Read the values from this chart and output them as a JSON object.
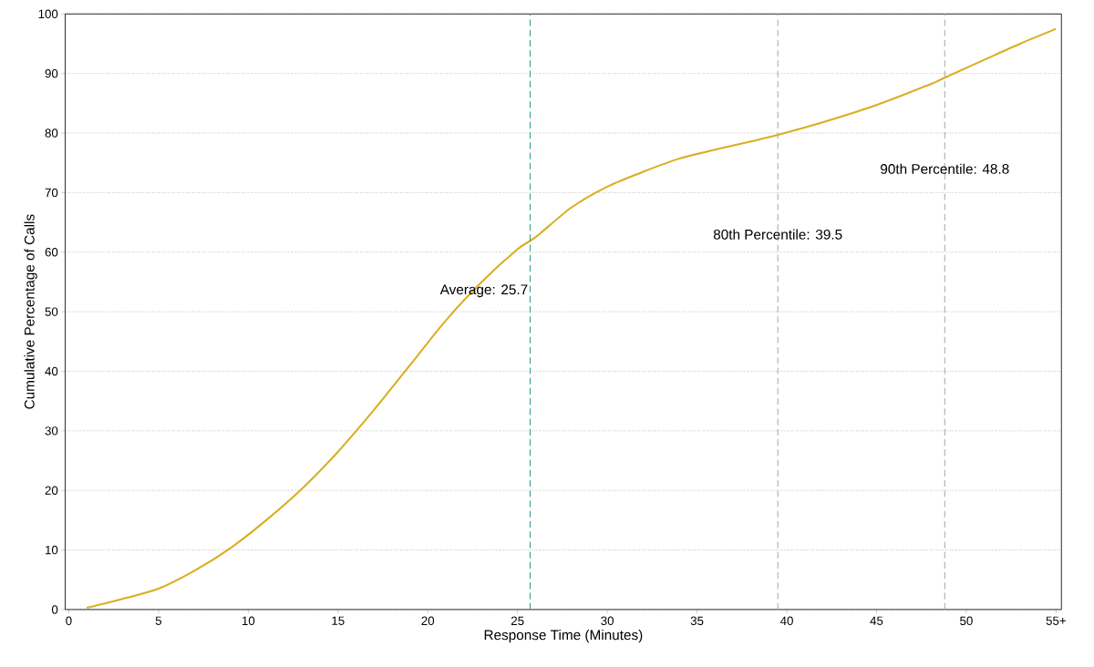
{
  "chart_data": {
    "type": "line",
    "xlabel": "Response Time (Minutes)",
    "ylabel": "Cumulative Percentage of Calls",
    "x": [
      1,
      3,
      5,
      7,
      9,
      11,
      13,
      15,
      17,
      19,
      21,
      23,
      25,
      26,
      28,
      30,
      32,
      34,
      36,
      38,
      39.5,
      42,
      45,
      48,
      48.8,
      51,
      53,
      55
    ],
    "series": [
      {
        "color": "#d9ae1e",
        "values": [
          0.3,
          1.8,
          3.5,
          6.5,
          10.3,
          15,
          20.3,
          26.5,
          33.5,
          41,
          48.5,
          55,
          60.5,
          62.5,
          67.5,
          71,
          73.5,
          75.7,
          77.2,
          78.6,
          79.7,
          81.8,
          84.7,
          88.2,
          89.3,
          92.3,
          95,
          97.5
        ]
      }
    ],
    "xlim": [
      -0.2,
      55.3
    ],
    "xticks": [
      0,
      5,
      10,
      15,
      20,
      25,
      30,
      35,
      40,
      45,
      50,
      {
        "value": 55,
        "label": "55+"
      }
    ],
    "ylim": [
      0,
      100
    ],
    "yticks": [
      0,
      10,
      20,
      30,
      40,
      50,
      60,
      70,
      80,
      90,
      100
    ],
    "grid": "y",
    "line_style": "solid",
    "marker": "none",
    "ref_lines": [
      {
        "axis": "x",
        "value": 25.7,
        "label": "Average: 25.7",
        "color": "#2a9d8f",
        "line_style": "dashed"
      },
      {
        "axis": "x",
        "value": 39.5,
        "label": "80th Percentile: 39.5",
        "color": "#a8a8a8",
        "line_style": "dashed"
      },
      {
        "axis": "x",
        "value": 48.8,
        "label": "90th Percentile: 48.8",
        "color": "#a8a8a8",
        "line_style": "dashed"
      }
    ]
  }
}
